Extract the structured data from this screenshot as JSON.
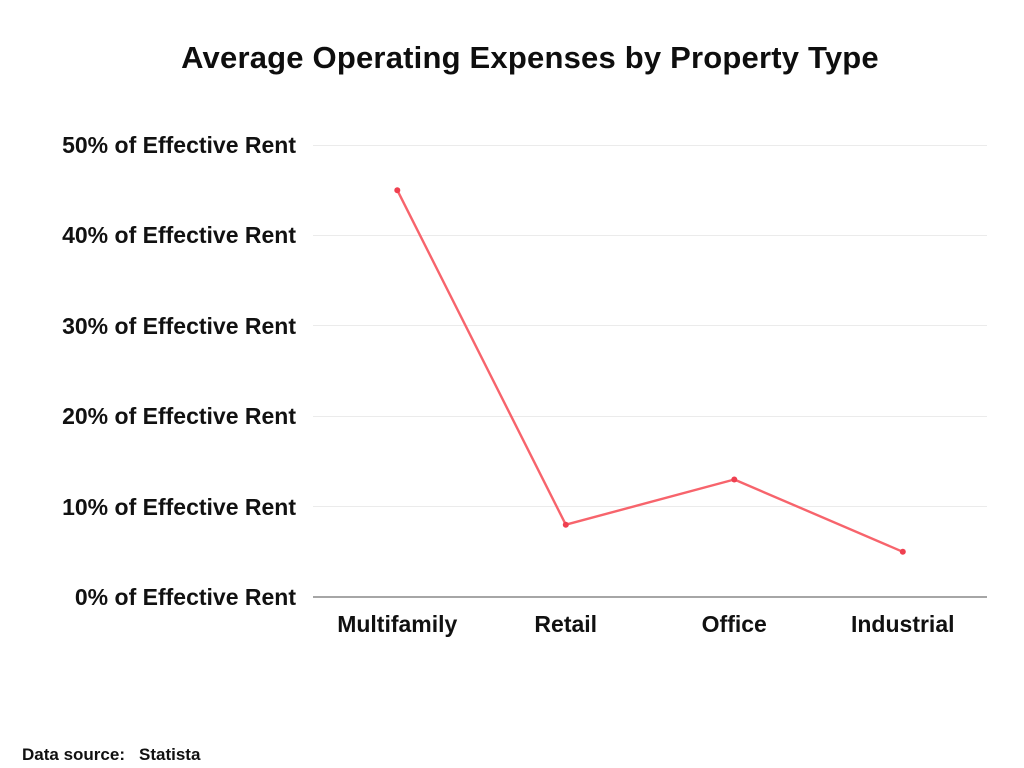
{
  "title": "Average Operating Expenses by Property Type",
  "footer": {
    "prefix": "Data source:",
    "source": "Statista"
  },
  "chart_data": {
    "type": "line",
    "title": "Average Operating Expenses by Property Type",
    "categories": [
      "Multifamily",
      "Retail",
      "Office",
      "Industrial"
    ],
    "series": [
      {
        "name": "Average Operating Expenses",
        "values": [
          45,
          8,
          13,
          5
        ]
      }
    ],
    "unit": "% of Effective Rent",
    "xlabel": "",
    "ylabel": "",
    "ylim": [
      0,
      50
    ],
    "ytick_step": 10,
    "ytick_labels": [
      "0% of Effective Rent",
      "10% of Effective Rent",
      "20% of Effective Rent",
      "30% of Effective Rent",
      "40% of Effective Rent",
      "50% of Effective Rent"
    ],
    "grid": true,
    "legend": false,
    "colors": {
      "line": "#f7646c",
      "marker": "#ef4050",
      "gridline": "#ebebeb",
      "axis": "#a6a6a6",
      "text": "#111111",
      "background": "#ffffff"
    }
  }
}
